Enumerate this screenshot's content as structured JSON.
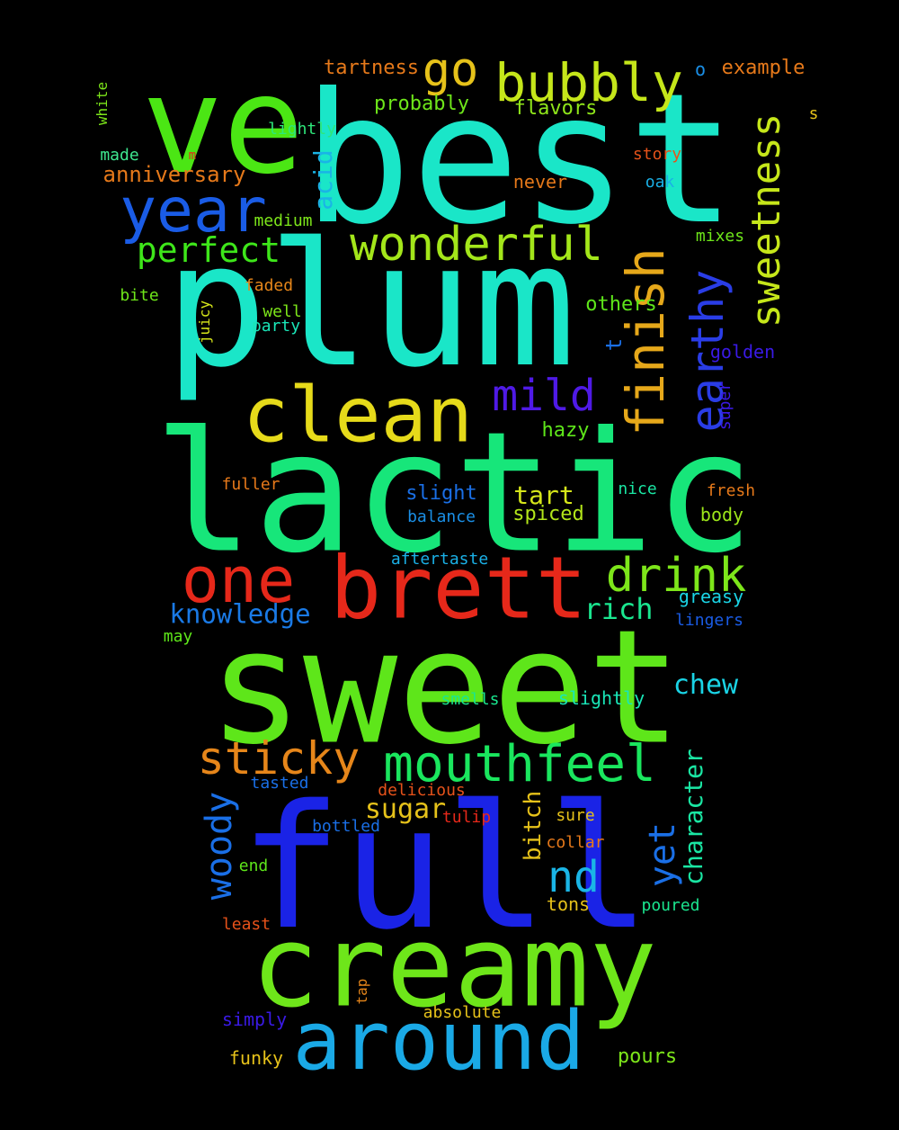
{
  "words": [
    {
      "text": "ve",
      "color": "#4be614"
    },
    {
      "text": "best",
      "color": "#1ae6c8"
    },
    {
      "text": "plum",
      "color": "#1ae6c8"
    },
    {
      "text": "lactic",
      "color": "#17e67a"
    },
    {
      "text": "sweet",
      "color": "#5ee61a"
    },
    {
      "text": "full",
      "color": "#1a23e6"
    },
    {
      "text": "creamy",
      "color": "#6ee61a"
    },
    {
      "text": "around",
      "color": "#1aa9e6"
    },
    {
      "text": "brett",
      "color": "#e6281a"
    },
    {
      "text": "clean",
      "color": "#e6da1a"
    },
    {
      "text": "one",
      "color": "#e6281a"
    },
    {
      "text": "year",
      "color": "#1a5ce6"
    },
    {
      "text": "wonderful",
      "color": "#a3e61a"
    },
    {
      "text": "bubbly",
      "color": "#c5e61a"
    },
    {
      "text": "go",
      "color": "#e6c21a"
    },
    {
      "text": "finish",
      "color": "#e6a81a"
    },
    {
      "text": "earthy",
      "color": "#2a3de6"
    },
    {
      "text": "sweetness",
      "color": "#c5e61a"
    },
    {
      "text": "mild",
      "color": "#4f1ae6"
    },
    {
      "text": "drink",
      "color": "#7de61a"
    },
    {
      "text": "mouthfeel",
      "color": "#1ae65e"
    },
    {
      "text": "sticky",
      "color": "#e6861a"
    },
    {
      "text": "nd",
      "color": "#1ab5e6"
    },
    {
      "text": "perfect",
      "color": "#3ee61a"
    },
    {
      "text": "woody",
      "color": "#1a6fe6"
    },
    {
      "text": "yet",
      "color": "#1a6fe6"
    },
    {
      "text": "knowledge",
      "color": "#1a7ae6"
    },
    {
      "text": "character",
      "color": "#1ae6a3"
    },
    {
      "text": "acid",
      "color": "#1ab4e6"
    },
    {
      "text": "tart",
      "color": "#d6e61a"
    },
    {
      "text": "rich",
      "color": "#1ae68f"
    },
    {
      "text": "chew",
      "color": "#1ad4e6"
    },
    {
      "text": "sugar",
      "color": "#e6c21a"
    },
    {
      "text": "bitch",
      "color": "#e6c21a"
    },
    {
      "text": "anniversary",
      "color": "#e6791a"
    },
    {
      "text": "tartness",
      "color": "#e6791a"
    },
    {
      "text": "example",
      "color": "#e6791a"
    },
    {
      "text": "probably",
      "color": "#6ee61a"
    },
    {
      "text": "flavors",
      "color": "#8fe61a"
    },
    {
      "text": "lightly",
      "color": "#2ee67a"
    },
    {
      "text": "medium",
      "color": "#7de61a"
    },
    {
      "text": "others",
      "color": "#5ee61a"
    },
    {
      "text": "hazy",
      "color": "#5ee61a"
    },
    {
      "text": "slight",
      "color": "#1a6fe6"
    },
    {
      "text": "balance",
      "color": "#1a8fe6"
    },
    {
      "text": "spiced",
      "color": "#b3e61a"
    },
    {
      "text": "body",
      "color": "#9de61a"
    },
    {
      "text": "aftertaste",
      "color": "#1ab0e6"
    },
    {
      "text": "greasy",
      "color": "#1ad4e6"
    },
    {
      "text": "lingers",
      "color": "#1a5ce6"
    },
    {
      "text": "slightly",
      "color": "#1ae6b8"
    },
    {
      "text": "smells",
      "color": "#1ae68f"
    },
    {
      "text": "golden",
      "color": "#3a1ae6"
    },
    {
      "text": "super",
      "color": "#3a1ae6"
    },
    {
      "text": "mixes",
      "color": "#6ee61a"
    },
    {
      "text": "never",
      "color": "#e6791a"
    },
    {
      "text": "story",
      "color": "#e6521a"
    },
    {
      "text": "oak",
      "color": "#1ab0e6"
    },
    {
      "text": "o",
      "color": "#1a8fe6"
    },
    {
      "text": "s",
      "color": "#e6c21a"
    },
    {
      "text": "white",
      "color": "#7de61a"
    },
    {
      "text": "made",
      "color": "#3ee68f"
    },
    {
      "text": "m",
      "color": "#e6281a"
    },
    {
      "text": "bite",
      "color": "#6ee61a"
    },
    {
      "text": "faded",
      "color": "#e6861a"
    },
    {
      "text": "well",
      "color": "#7de61a"
    },
    {
      "text": "party",
      "color": "#1ae6b8"
    },
    {
      "text": "juicy",
      "color": "#d6e61a"
    },
    {
      "text": "t",
      "color": "#1a6fe6"
    },
    {
      "text": "fuller",
      "color": "#e6791a"
    },
    {
      "text": "nice",
      "color": "#1ae6a3"
    },
    {
      "text": "fresh",
      "color": "#e6791a"
    },
    {
      "text": "tasted",
      "color": "#1a6fe6"
    },
    {
      "text": "delicious",
      "color": "#e6521a"
    },
    {
      "text": "tulip",
      "color": "#e6281a"
    },
    {
      "text": "sure",
      "color": "#e6c21a"
    },
    {
      "text": "collar",
      "color": "#e6791a"
    },
    {
      "text": "bottled",
      "color": "#1a6fe6"
    },
    {
      "text": "end",
      "color": "#5ee61a"
    },
    {
      "text": "tons",
      "color": "#e6c21a"
    },
    {
      "text": "poured",
      "color": "#1ae68f"
    },
    {
      "text": "least",
      "color": "#e6521a"
    },
    {
      "text": "may",
      "color": "#5ee61a"
    },
    {
      "text": "tap",
      "color": "#e6861a"
    },
    {
      "text": "absolute",
      "color": "#e6c21a"
    },
    {
      "text": "simply",
      "color": "#3a1ae6"
    },
    {
      "text": "funky",
      "color": "#e6c21a"
    },
    {
      "text": "pours",
      "color": "#7de61a"
    }
  ]
}
